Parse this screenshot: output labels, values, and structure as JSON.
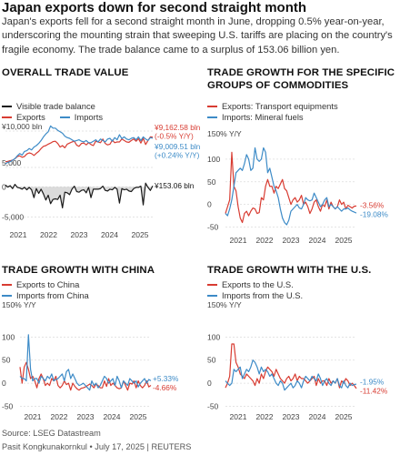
{
  "headline": "Japan exports down for second straight month",
  "dek": "Japan's exports fell for a second straight month in June, dropping 0.5% year-on-year, underscoring the mounting strain that sweeping U.S. tariffs are placing on the country's fragile economy. The trade balance came to a surplus of 153.06 billion yen.",
  "source": "Source: LSEG Datastream",
  "credit": "Pasit Kongkunakornkul • July 17, 2025 | REUTERS",
  "colors": {
    "red": "#d83c32",
    "blue": "#3d8bc7",
    "black": "#1a1a1a",
    "grid": "#dcdcdc",
    "fill": "#cccccc"
  },
  "chart_data": [
    {
      "id": "overall",
      "type": "line",
      "title": "OVERALL TRADE VALUE",
      "legend": [
        "Visible trade balance",
        "Exports",
        "Imports"
      ],
      "x_ticks": [
        "2021",
        "2022",
        "2023",
        "2024",
        "2025"
      ],
      "top_panel": {
        "y_ticks": [
          "¥10,000 bln",
          "5,000"
        ],
        "y_tick_values": [
          10000,
          5000
        ],
        "ylim": [
          4000,
          11000
        ],
        "series": [
          {
            "name": "Exports",
            "color": "red",
            "values": [
              5780,
              5830,
              5930,
              6000,
              6200,
              6500,
              6600,
              6400,
              6500,
              6850,
              7000,
              6900,
              6650,
              6950,
              7200,
              7600,
              7900,
              8000,
              8200,
              8350,
              8550,
              8600,
              8300,
              7800,
              8000,
              7700,
              8200,
              8350,
              8500,
              8600,
              8050,
              7900,
              8300,
              8350,
              8100,
              8400,
              8150,
              8000,
              8600,
              8500,
              8400,
              8900,
              8300,
              8100,
              8200,
              8750,
              8400,
              8500,
              8500,
              8900,
              8700,
              8500,
              8450,
              8700,
              8900,
              8600,
              8950,
              8350,
              9000,
              8150,
              8700,
              9200,
              9162
            ]
          },
          {
            "name": "Imports",
            "color": "blue",
            "values": [
              5500,
              5700,
              5800,
              6000,
              6200,
              6600,
              6900,
              6700,
              7200,
              7300,
              7600,
              7400,
              7800,
              8000,
              8300,
              8700,
              9200,
              9600,
              9900,
              10700,
              10400,
              10400,
              10100,
              9900,
              9700,
              9300,
              9100,
              9000,
              8800,
              8600,
              8700,
              8800,
              8600,
              8500,
              8700,
              8400,
              8400,
              8600,
              8800,
              8500,
              8900,
              8700,
              8500,
              8900,
              9000,
              8600,
              9100,
              8800,
              9500,
              8950,
              9200,
              8900,
              8800,
              9000,
              9100,
              8800,
              9200,
              8700,
              9200,
              8900,
              8700,
              9100,
              9009
            ]
          }
        ],
        "end_labels": [
          {
            "series": "Exports",
            "lines": [
              "¥9,162.58 bln",
              "(-0.5% Y/Y)"
            ]
          },
          {
            "series": "Imports",
            "lines": [
              "¥9,009.51 bln",
              "(+0.24% Y/Y)"
            ]
          }
        ]
      },
      "bottom_panel": {
        "y_ticks": [
          "0",
          "-5,000"
        ],
        "y_tick_values": [
          0,
          -5000
        ],
        "ylim": [
          -6000,
          2000
        ],
        "series": [
          {
            "name": "Visible trade balance",
            "color": "black",
            "values": [
              280,
              -50,
              180,
              -300,
              400,
              -100,
              -200,
              -400,
              -100,
              -500,
              -100,
              -500,
              -1800,
              -300,
              -1100,
              -400,
              -1200,
              -2200,
              -1400,
              -2800,
              -2100,
              -2000,
              -2100,
              -1400,
              -3500,
              -900,
              -1000,
              -1300,
              -400,
              100,
              -800,
              -900,
              -600,
              -500,
              -1000,
              -100,
              -1800,
              -400,
              -400,
              -400,
              -300,
              100,
              -600,
              -700,
              -400,
              -500,
              -100,
              -400,
              -2700,
              -300,
              -500,
              -400,
              -700,
              -800,
              -300,
              -100,
              -100,
              100,
              -3000,
              600,
              -100,
              -600,
              153
            ]
          }
        ],
        "end_labels": [
          {
            "series": "Visible trade balance",
            "lines": [
              "¥153.06 bln"
            ]
          }
        ]
      }
    },
    {
      "id": "commodities",
      "type": "line",
      "title": "TRADE GROWTH FOR THE SPECIFIC GROUPS OF COMMODITIES",
      "legend": [
        "Exports: Transport equipments",
        "Imports: Mineral fuels"
      ],
      "ylabel": "150% Y/Y",
      "y_ticks": [
        "100",
        "50",
        "0",
        "-50"
      ],
      "y_tick_values": [
        100,
        50,
        0,
        -50
      ],
      "ylim": [
        -55,
        150
      ],
      "x_ticks": [
        "2021",
        "2022",
        "2023",
        "2024",
        "2025"
      ],
      "series": [
        {
          "name": "Exports: Transport equipments",
          "color": "red",
          "values": [
            -20,
            -5,
            10,
            115,
            40,
            30,
            -5,
            -30,
            -40,
            -20,
            -15,
            -25,
            -15,
            -8,
            -10,
            -20,
            -18,
            15,
            10,
            40,
            55,
            40,
            40,
            25,
            40,
            35,
            45,
            55,
            35,
            30,
            15,
            0,
            10,
            15,
            5,
            10,
            20,
            0,
            5,
            -5,
            -20,
            -10,
            5,
            10,
            -5,
            -15,
            0,
            -5,
            10,
            -10,
            5,
            -5,
            -10,
            -5,
            10,
            0,
            5,
            -10,
            -2,
            -5,
            -8,
            -4,
            -3.56
          ]
        },
        {
          "name": "Imports: Mineral fuels",
          "color": "blue",
          "values": [
            -20,
            -25,
            -10,
            10,
            40,
            70,
            75,
            80,
            75,
            90,
            110,
            100,
            75,
            80,
            125,
            100,
            95,
            100,
            125,
            115,
            70,
            80,
            60,
            40,
            30,
            15,
            -10,
            -30,
            -40,
            -45,
            -35,
            -15,
            -10,
            -5,
            0,
            -8,
            -10,
            0,
            15,
            10,
            8,
            10,
            25,
            15,
            5,
            -5,
            0,
            10,
            15,
            -5,
            0,
            -5,
            -10,
            -5,
            -10,
            -15,
            -10,
            -10,
            -8,
            -12,
            -15,
            -17,
            -19.08
          ]
        }
      ],
      "end_labels": [
        {
          "series": "Exports: Transport equipments",
          "lines": [
            "-3.56%"
          ]
        },
        {
          "series": "Imports: Mineral fuels",
          "lines": [
            "-19.08%"
          ]
        }
      ]
    },
    {
      "id": "china",
      "type": "line",
      "title": "TRADE GROWTH WITH CHINA",
      "legend": [
        "Exports to China",
        "Imports from China"
      ],
      "ylabel": "150% Y/Y",
      "y_ticks": [
        "100",
        "50",
        "0",
        "-50"
      ],
      "y_tick_values": [
        100,
        50,
        0,
        -50
      ],
      "ylim": [
        -55,
        150
      ],
      "x_ticks": [
        "2021",
        "2022",
        "2023",
        "2024",
        "2025"
      ],
      "series": [
        {
          "name": "Exports to China",
          "color": "red",
          "values": [
            35,
            0,
            35,
            45,
            30,
            10,
            15,
            5,
            -10,
            10,
            20,
            10,
            -5,
            0,
            -5,
            10,
            5,
            15,
            -5,
            -10,
            -5,
            5,
            -3,
            0,
            -15,
            0,
            -7,
            -12,
            -15,
            -11,
            -10,
            -8,
            -5,
            -2,
            -5,
            -10,
            -2,
            -5,
            -10,
            -10,
            5,
            -7,
            10,
            -5,
            0,
            -5,
            -10,
            -12,
            -10,
            5,
            -5,
            -15,
            0,
            -2,
            5,
            -10,
            5,
            -5,
            -10,
            -5,
            5,
            -8,
            -4.66
          ]
        },
        {
          "name": "Imports from China",
          "color": "blue",
          "values": [
            15,
            10,
            10,
            5,
            105,
            30,
            5,
            10,
            10,
            0,
            15,
            10,
            5,
            15,
            10,
            20,
            5,
            8,
            10,
            15,
            20,
            5,
            25,
            30,
            10,
            20,
            10,
            0,
            -5,
            -3,
            0,
            -5,
            -10,
            -15,
            5,
            -5,
            0,
            -10,
            -5,
            5,
            15,
            10,
            0,
            5,
            10,
            -5,
            15,
            5,
            -10,
            5,
            0,
            -5,
            10,
            5,
            0,
            5,
            -8,
            0,
            5,
            10,
            0,
            8,
            5.33
          ]
        }
      ],
      "end_labels": [
        {
          "series": "Imports from China",
          "lines": [
            "+5.33%"
          ]
        },
        {
          "series": "Exports to China",
          "lines": [
            "-4.66%"
          ]
        }
      ]
    },
    {
      "id": "us",
      "type": "line",
      "title": "TRADE GROWTH WITH THE U.S.",
      "legend": [
        "Exports to the U.S.",
        "Imports from the U.S."
      ],
      "ylabel": "150% Y/Y",
      "y_ticks": [
        "100",
        "50",
        "0",
        "-50"
      ],
      "y_tick_values": [
        100,
        50,
        0,
        -50
      ],
      "ylim": [
        -55,
        150
      ],
      "x_ticks": [
        "2021",
        "2022",
        "2023",
        "2024",
        "2025"
      ],
      "series": [
        {
          "name": "Exports to the U.S.",
          "color": "red",
          "values": [
            -10,
            0,
            15,
            85,
            85,
            45,
            35,
            20,
            15,
            10,
            20,
            15,
            10,
            5,
            -5,
            10,
            0,
            20,
            10,
            25,
            35,
            30,
            25,
            15,
            30,
            20,
            10,
            5,
            0,
            10,
            15,
            5,
            10,
            20,
            5,
            15,
            10,
            10,
            5,
            0,
            5,
            10,
            15,
            -5,
            10,
            0,
            5,
            5,
            -5,
            10,
            0,
            5,
            0,
            10,
            -10,
            5,
            0,
            10,
            5,
            -5,
            0,
            -5,
            -11.42
          ]
        },
        {
          "name": "Imports from the U.S.",
          "color": "blue",
          "values": [
            5,
            0,
            -5,
            0,
            30,
            25,
            30,
            35,
            10,
            20,
            30,
            25,
            35,
            50,
            45,
            35,
            20,
            35,
            25,
            30,
            25,
            15,
            20,
            10,
            0,
            -5,
            5,
            0,
            -15,
            -10,
            -5,
            0,
            -10,
            -5,
            5,
            0,
            -10,
            5,
            15,
            10,
            5,
            15,
            10,
            5,
            20,
            10,
            -5,
            5,
            10,
            0,
            -5,
            5,
            0,
            10,
            -5,
            -10,
            5,
            -5,
            -10,
            0,
            -5,
            -3,
            -1.95
          ]
        }
      ],
      "end_labels": [
        {
          "series": "Imports from the U.S.",
          "lines": [
            "-1.95%"
          ]
        },
        {
          "series": "Exports to the U.S.",
          "lines": [
            "-11.42%"
          ]
        }
      ]
    }
  ]
}
